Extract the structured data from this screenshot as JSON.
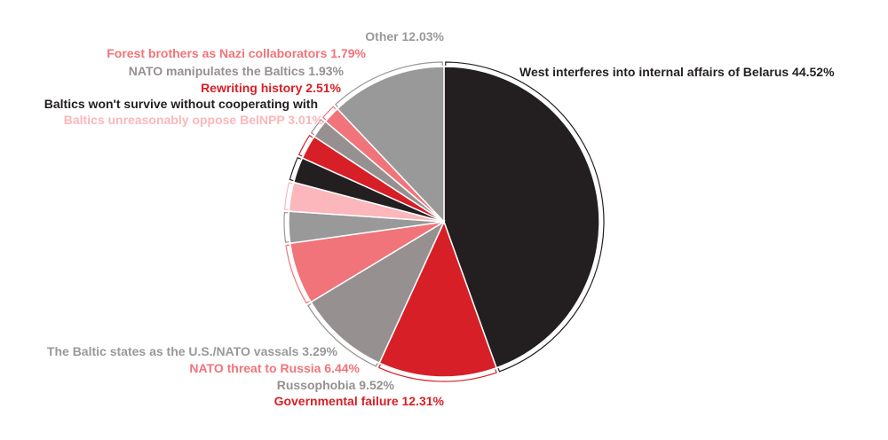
{
  "chart_data": {
    "type": "pie",
    "title": "",
    "start_angle_deg": 0,
    "direction": "clockwise",
    "slices": [
      {
        "label": "West interferes into internal affairs of Belarus 44.52%",
        "category": "West interferes into internal affairs of Belarus",
        "value": 44.52,
        "color": "#231f20",
        "label_color": "#231f20",
        "legend_side": "right"
      },
      {
        "label": "Governmental failure 12.31%",
        "category": "Governmental failure",
        "value": 12.31,
        "color": "#d71f27",
        "label_color": "#d71f27",
        "legend_side": "left"
      },
      {
        "label": "Russophobia 9.52%",
        "category": "Russophobia",
        "value": 9.52,
        "color": "#969090",
        "label_color": "#969090",
        "legend_side": "left"
      },
      {
        "label": "NATO threat to Russia 6.44%",
        "category": "NATO threat to Russia",
        "value": 6.44,
        "color": "#f0747a",
        "label_color": "#f0747a",
        "legend_side": "left"
      },
      {
        "label": "The Baltic states as the U.S./NATO vassals 3.29%",
        "category": "The Baltic states as the U.S./NATO vassals",
        "value": 3.29,
        "color": "#999999",
        "label_color": "#999999",
        "legend_side": "left"
      },
      {
        "label": "Baltics unreasonably oppose BelNPP 3.01%",
        "category": "Baltics unreasonably oppose BelNPP",
        "value": 3.01,
        "color": "#fbb7bb",
        "label_color": "#fbb7bb",
        "legend_side": "left"
      },
      {
        "label": "Baltics won't survive without cooperating with",
        "category": "Baltics won't survive without cooperating with",
        "value": 2.65,
        "color": "#231f20",
        "label_color": "#231f20",
        "legend_side": "left"
      },
      {
        "label": "Rewriting history 2.51%",
        "category": "Rewriting history",
        "value": 2.51,
        "color": "#d71f27",
        "label_color": "#d71f27",
        "legend_side": "left"
      },
      {
        "label": "NATO manipulates the Baltics 1.93%",
        "category": "NATO manipulates the Baltics",
        "value": 1.93,
        "color": "#969090",
        "label_color": "#969090",
        "legend_side": "left"
      },
      {
        "label": "Forest brothers as Nazi collaborators 1.79%",
        "category": "Forest brothers as Nazi collaborators",
        "value": 1.79,
        "color": "#f0747a",
        "label_color": "#f0747a",
        "legend_side": "left"
      },
      {
        "label": "Other 12.03%",
        "category": "Other",
        "value": 12.03,
        "color": "#999999",
        "label_color": "#999999",
        "legend_side": "left"
      }
    ]
  }
}
